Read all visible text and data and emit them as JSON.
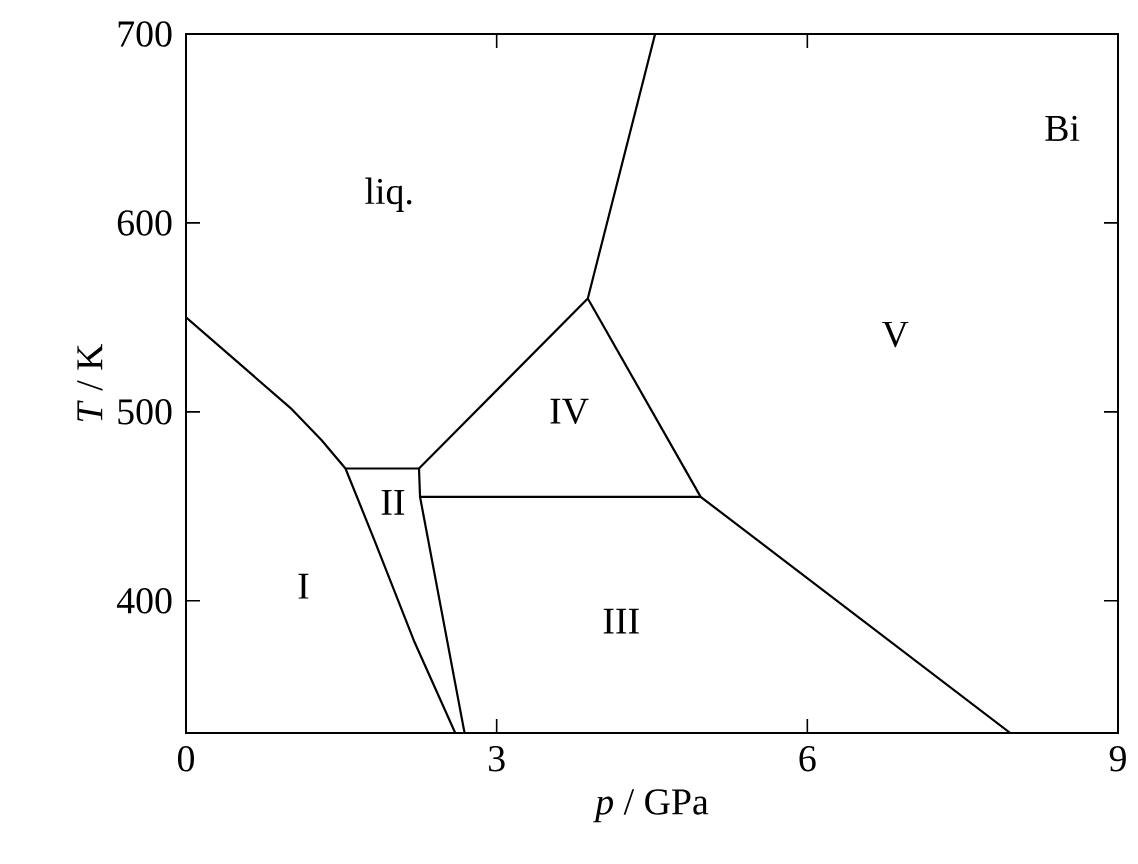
{
  "chart_data": {
    "type": "line",
    "xlabel": "*p* / GPa",
    "ylabel": "*T* / K",
    "xlim": [
      0,
      9
    ],
    "ylim": [
      330,
      700
    ],
    "xticks": [
      0,
      3,
      6,
      9
    ],
    "yticks": [
      400,
      500,
      600,
      700
    ],
    "grid": false,
    "marker": "none",
    "series": [
      {
        "color": "#000000",
        "x": [
          0,
          1.01,
          1.31,
          1.54,
          1.82,
          2.2,
          2.6
        ],
        "values": [
          550,
          502,
          485,
          470,
          432,
          379,
          330
        ]
      },
      {
        "color": "#000000",
        "x": [
          1.54,
          2.25,
          2.26,
          2.69
        ],
        "values": [
          470,
          470,
          455,
          330
        ]
      },
      {
        "color": "#000000",
        "x": [
          2.26,
          4.97,
          7.96
        ],
        "values": [
          455,
          455,
          330
        ]
      },
      {
        "color": "#000000",
        "x": [
          2.25,
          3.88,
          4.53
        ],
        "values": [
          470,
          560,
          700
        ]
      },
      {
        "color": "#000000",
        "x": [
          3.88,
          4.97
        ],
        "values": [
          560,
          455
        ]
      }
    ],
    "annotations": [
      "liq.",
      "Bi",
      "V",
      "IV",
      "II",
      "I",
      "III"
    ]
  }
}
